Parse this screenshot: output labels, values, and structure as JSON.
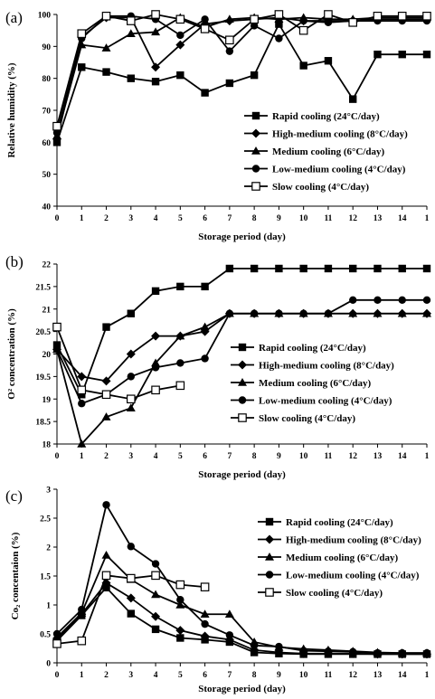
{
  "chart_data": [
    {
      "type": "line",
      "panel_label": "(a)",
      "xlabel": "Storage period (day)",
      "ylabel": "Relative humidity (%)",
      "xlim": [
        0,
        15
      ],
      "ylim": [
        40,
        100
      ],
      "y_ticks": [
        40,
        50,
        60,
        70,
        80,
        90,
        100
      ],
      "x_ticks": [
        0,
        1,
        2,
        3,
        4,
        5,
        6,
        7,
        8,
        9,
        10,
        11,
        12,
        13,
        14,
        15
      ],
      "x_tick_labels": [
        "0",
        "1",
        "2",
        "3",
        "4",
        "5",
        "6",
        "7",
        "8",
        "9",
        "10",
        "11",
        "12",
        "13",
        "14",
        "1"
      ],
      "grid": false,
      "legend_position": "right",
      "series": [
        {
          "name": "Rapid cooling (24°C/day)",
          "marker": "square-filled",
          "x": [
            0,
            1,
            2,
            3,
            4,
            5,
            6,
            7,
            8,
            9,
            10,
            11,
            12,
            13,
            14,
            15
          ],
          "values": [
            60,
            83.5,
            82,
            80,
            79,
            81,
            75.5,
            78.5,
            81,
            97,
            84,
            85.5,
            73.5,
            87.5,
            87.5,
            87.5
          ]
        },
        {
          "name": "High-medium cooling (8°C/day)",
          "marker": "diamond-filled",
          "x": [
            0,
            1,
            2,
            3,
            4,
            5,
            6,
            7,
            8,
            9,
            10,
            11,
            12,
            13,
            14,
            15
          ],
          "values": [
            61,
            93,
            99,
            99,
            83.5,
            90.5,
            97,
            98,
            98.5,
            99,
            98,
            98,
            98,
            98.5,
            98.5,
            98.5
          ]
        },
        {
          "name": "Medium cooling (6°C/day)",
          "marker": "triangle-filled",
          "x": [
            0,
            1,
            2,
            3,
            4,
            5,
            6,
            7,
            8,
            9,
            10,
            11,
            12,
            13,
            14,
            15
          ],
          "values": [
            62,
            90.5,
            89.5,
            94,
            94.5,
            99,
            96,
            98.5,
            99,
            98.5,
            99,
            98.5,
            98.5,
            99,
            99,
            99
          ]
        },
        {
          "name": "Low-medium cooling (4°C/day)",
          "marker": "circle-filled",
          "x": [
            0,
            1,
            2,
            3,
            4,
            5,
            6,
            7,
            8,
            9,
            10,
            11,
            12,
            13,
            14,
            15
          ],
          "values": [
            63,
            92.5,
            99.5,
            99.5,
            98.5,
            93.5,
            98.5,
            88.5,
            96.5,
            92.5,
            98,
            97.5,
            98,
            98,
            98,
            98
          ]
        },
        {
          "name": "Slow cooling (4°C/day)",
          "marker": "square-open",
          "x": [
            0,
            1,
            2,
            3,
            4,
            5,
            6,
            7,
            8,
            9,
            10,
            11,
            12,
            13,
            14,
            15
          ],
          "values": [
            65,
            94,
            99.5,
            98,
            100,
            98.5,
            95.5,
            92,
            98.5,
            100,
            95,
            100,
            97.5,
            99.5,
            99.5,
            99.5
          ]
        }
      ]
    },
    {
      "type": "line",
      "panel_label": "(b)",
      "xlabel": "Storage period (day)",
      "ylabel": "O² concentration (%)",
      "xlim": [
        0,
        15
      ],
      "ylim": [
        18,
        22
      ],
      "y_ticks": [
        18,
        18.5,
        19,
        19.5,
        20,
        20.5,
        21,
        21.5,
        22
      ],
      "y_tick_labels": [
        "18",
        "18.5",
        "19",
        "19.5",
        "20",
        "20.5",
        "21",
        "21.5",
        "22"
      ],
      "x_ticks": [
        0,
        1,
        2,
        3,
        4,
        5,
        6,
        7,
        8,
        9,
        10,
        11,
        12,
        13,
        14,
        15
      ],
      "x_tick_labels": [
        "0",
        "1",
        "2",
        "3",
        "4",
        "5",
        "6",
        "7",
        "8",
        "9",
        "10",
        "11",
        "12",
        "13",
        "14",
        "1"
      ],
      "grid": false,
      "legend_position": "right",
      "series": [
        {
          "name": "Rapid cooling (24°C/day)",
          "marker": "square-filled",
          "x": [
            0,
            1,
            2,
            3,
            4,
            5,
            6,
            7,
            8,
            9,
            10,
            11,
            12,
            13,
            14,
            15
          ],
          "values": [
            20.2,
            19.1,
            20.6,
            20.9,
            21.4,
            21.5,
            21.5,
            21.9,
            21.9,
            21.9,
            21.9,
            21.9,
            21.9,
            21.9,
            21.9,
            21.9
          ]
        },
        {
          "name": "High-medium cooling (8°C/day)",
          "marker": "diamond-filled",
          "x": [
            0,
            1,
            2,
            3,
            4,
            5,
            6,
            7,
            8,
            9,
            10,
            11,
            12,
            13,
            14,
            15
          ],
          "values": [
            20.1,
            19.5,
            19.4,
            20,
            20.4,
            20.4,
            20.5,
            20.9,
            20.9,
            20.9,
            20.9,
            20.9,
            20.9,
            20.9,
            20.9,
            20.9
          ]
        },
        {
          "name": "Medium cooling (6°C/day)",
          "marker": "triangle-filled",
          "x": [
            0,
            1,
            2,
            3,
            4,
            5,
            6,
            7,
            8,
            9,
            10,
            11,
            12,
            13,
            14,
            15
          ],
          "values": [
            20.1,
            18,
            18.6,
            18.8,
            19.8,
            20.4,
            20.6,
            20.9,
            20.9,
            20.9,
            20.9,
            20.9,
            20.9,
            20.9,
            20.9,
            20.9
          ]
        },
        {
          "name": "Low-medium cooling (4°C/day)",
          "marker": "circle-filled",
          "x": [
            0,
            1,
            2,
            3,
            4,
            5,
            6,
            7,
            8,
            9,
            10,
            11,
            12,
            13,
            14,
            15
          ],
          "values": [
            20.1,
            18.9,
            19.1,
            19.5,
            19.7,
            19.8,
            19.9,
            20.9,
            20.9,
            20.9,
            20.9,
            20.9,
            21.2,
            21.2,
            21.2,
            21.2
          ]
        },
        {
          "name": "Slow cooling (4°C/day)",
          "marker": "square-open",
          "x": [
            0,
            1,
            2,
            3,
            4,
            5
          ],
          "values": [
            20.6,
            19.2,
            19.1,
            19,
            19.2,
            19.3
          ]
        }
      ]
    },
    {
      "type": "line",
      "panel_label": "(c)",
      "xlabel": "Storage period (day)",
      "ylabel": "Co₂ concentaion (%)",
      "xlim": [
        0,
        15
      ],
      "ylim": [
        0,
        3
      ],
      "y_ticks": [
        0,
        0.5,
        1,
        1.5,
        2,
        2.5,
        3
      ],
      "y_tick_labels": [
        "0",
        "0.5",
        "1",
        "1.5",
        "2",
        "2.5",
        "3"
      ],
      "x_ticks": [
        0,
        1,
        2,
        3,
        4,
        5,
        6,
        7,
        8,
        9,
        10,
        11,
        12,
        13,
        14,
        15
      ],
      "x_tick_labels": [
        "0",
        "1",
        "2",
        "3",
        "4",
        "5",
        "6",
        "7",
        "8",
        "9",
        "10",
        "11",
        "12",
        "13",
        "14",
        "1"
      ],
      "grid": false,
      "legend_position": "top-right",
      "series": [
        {
          "name": "Rapid cooling (24°C/day)",
          "marker": "square-filled",
          "x": [
            0,
            1,
            2,
            3,
            4,
            5,
            6,
            7,
            8,
            9,
            10,
            11,
            12,
            13,
            14,
            15
          ],
          "values": [
            0.38,
            0.82,
            1.3,
            0.85,
            0.58,
            0.43,
            0.4,
            0.36,
            0.18,
            0.16,
            0.15,
            0.15,
            0.15,
            0.15,
            0.15,
            0.15
          ]
        },
        {
          "name": "High-medium cooling (8°C/day)",
          "marker": "diamond-filled",
          "x": [
            0,
            1,
            2,
            3,
            4,
            5,
            6,
            7,
            8,
            9,
            10,
            11,
            12,
            13,
            14,
            15
          ],
          "values": [
            0.42,
            0.84,
            1.38,
            1.12,
            0.8,
            0.56,
            0.46,
            0.4,
            0.22,
            0.18,
            0.16,
            0.16,
            0.16,
            0.15,
            0.15,
            0.15
          ]
        },
        {
          "name": "Medium cooling (6°C/day)",
          "marker": "triangle-filled",
          "x": [
            0,
            1,
            2,
            3,
            4,
            5,
            6,
            7,
            8,
            9,
            10,
            11,
            12,
            13,
            14,
            15
          ],
          "values": [
            0.44,
            0.86,
            1.86,
            1.44,
            1.18,
            1,
            0.84,
            0.84,
            0.36,
            0.27,
            0.24,
            0.22,
            0.2,
            0.18,
            0.17,
            0.17
          ]
        },
        {
          "name": "Low-medium cooling (4°C/day)",
          "marker": "circle-filled",
          "x": [
            0,
            1,
            2,
            3,
            4,
            5,
            6,
            7,
            8,
            9,
            10,
            11,
            12,
            13,
            14,
            15
          ],
          "values": [
            0.5,
            0.92,
            2.73,
            2.01,
            1.71,
            1.09,
            0.67,
            0.48,
            0.3,
            0.28,
            0.21,
            0.2,
            0.19,
            0.17,
            0.17,
            0.17
          ]
        },
        {
          "name": "Slow cooling (4°C/day)",
          "marker": "square-open",
          "x": [
            0,
            1,
            2,
            3,
            4,
            5,
            6
          ],
          "values": [
            0.33,
            0.38,
            1.51,
            1.46,
            1.51,
            1.35,
            1.31
          ]
        }
      ]
    }
  ]
}
